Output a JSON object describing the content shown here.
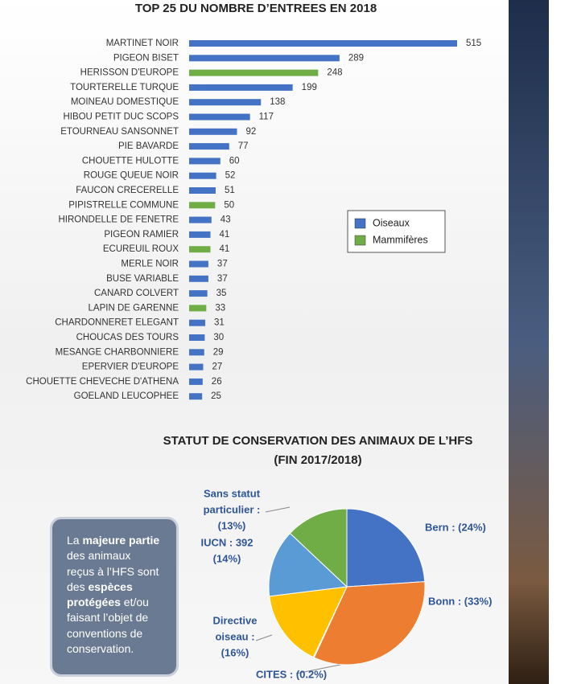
{
  "chart_data": [
    {
      "type": "hbar",
      "title": "TOP 25 DU NOMBRE D’ENTREES EN 2018",
      "categories": [
        "MARTINET NOIR",
        "PIGEON BISET",
        "HERISSON D'EUROPE",
        "TOURTERELLE TURQUE",
        "MOINEAU DOMESTIQUE",
        "HIBOU PETIT DUC SCOPS",
        "ETOURNEAU SANSONNET",
        "PIE BAVARDE",
        "CHOUETTE HULOTTE",
        "ROUGE QUEUE NOIR",
        "FAUCON CRECERELLE",
        "PIPISTRELLE COMMUNE",
        "HIRONDELLE DE FENETRE",
        "PIGEON RAMIER",
        "ECUREUIL ROUX",
        "MERLE NOIR",
        "BUSE VARIABLE",
        "CANARD COLVERT",
        "LAPIN DE GARENNE",
        "CHARDONNERET ELEGANT",
        "CHOUCAS DES TOURS",
        "MESANGE CHARBONNIERE",
        "EPERVIER D'EUROPE",
        "CHOUETTE CHEVECHE D'ATHENA",
        "GOELAND LEUCOPHEE"
      ],
      "series": [
        {
          "name": "Oiseaux",
          "color": "#4472c4",
          "values": [
            515,
            289,
            null,
            199,
            138,
            117,
            92,
            77,
            60,
            52,
            51,
            null,
            43,
            41,
            null,
            37,
            37,
            35,
            null,
            31,
            30,
            29,
            27,
            26,
            25
          ]
        },
        {
          "name": "Mammifères",
          "color": "#70ad47",
          "values": [
            null,
            null,
            248,
            null,
            null,
            null,
            null,
            null,
            null,
            null,
            null,
            50,
            null,
            null,
            41,
            null,
            null,
            null,
            33,
            null,
            null,
            null,
            null,
            null,
            null
          ]
        }
      ]
    },
    {
      "type": "pie",
      "title": [
        "STATUT DE CONSERVATION DES ANIMAUX DE L’HFS",
        "(FIN 2017/2018)"
      ],
      "labels": [
        [
          "Bern : (24%)"
        ],
        [
          "Bonn : (33%)"
        ],
        [
          "CITES :  (0.2%)"
        ],
        [
          "Directive",
          "oiseau :",
          "(16%)"
        ],
        [
          "IUCN : 392",
          "(14%)"
        ],
        [
          "Sans statut",
          "particulier :",
          "(13%)"
        ]
      ],
      "values": [
        24,
        33,
        0.2,
        16,
        14,
        13
      ],
      "colors": [
        "#4472c4",
        "#ed7d31",
        "#a5a5a5",
        "#ffc000",
        "#5b9bd5",
        "#70ad47"
      ]
    }
  ],
  "note": {
    "lines": [
      [
        {
          "text": "La "
        },
        {
          "text": "majeure partie",
          "bold": true
        }
      ],
      [
        {
          "text": "des animaux"
        }
      ],
      [
        {
          "text": "reçus à l’HFS sont"
        }
      ],
      [
        {
          "text": "des "
        },
        {
          "text": "espèces",
          "bold": true
        }
      ],
      [
        {
          "text": "protégées",
          "bold": true
        },
        {
          "text": " et/ou"
        }
      ],
      [
        {
          "text": "faisant l’objet de"
        }
      ],
      [
        {
          "text": "conventions de"
        }
      ],
      [
        {
          "text": "conservation."
        }
      ]
    ]
  }
}
